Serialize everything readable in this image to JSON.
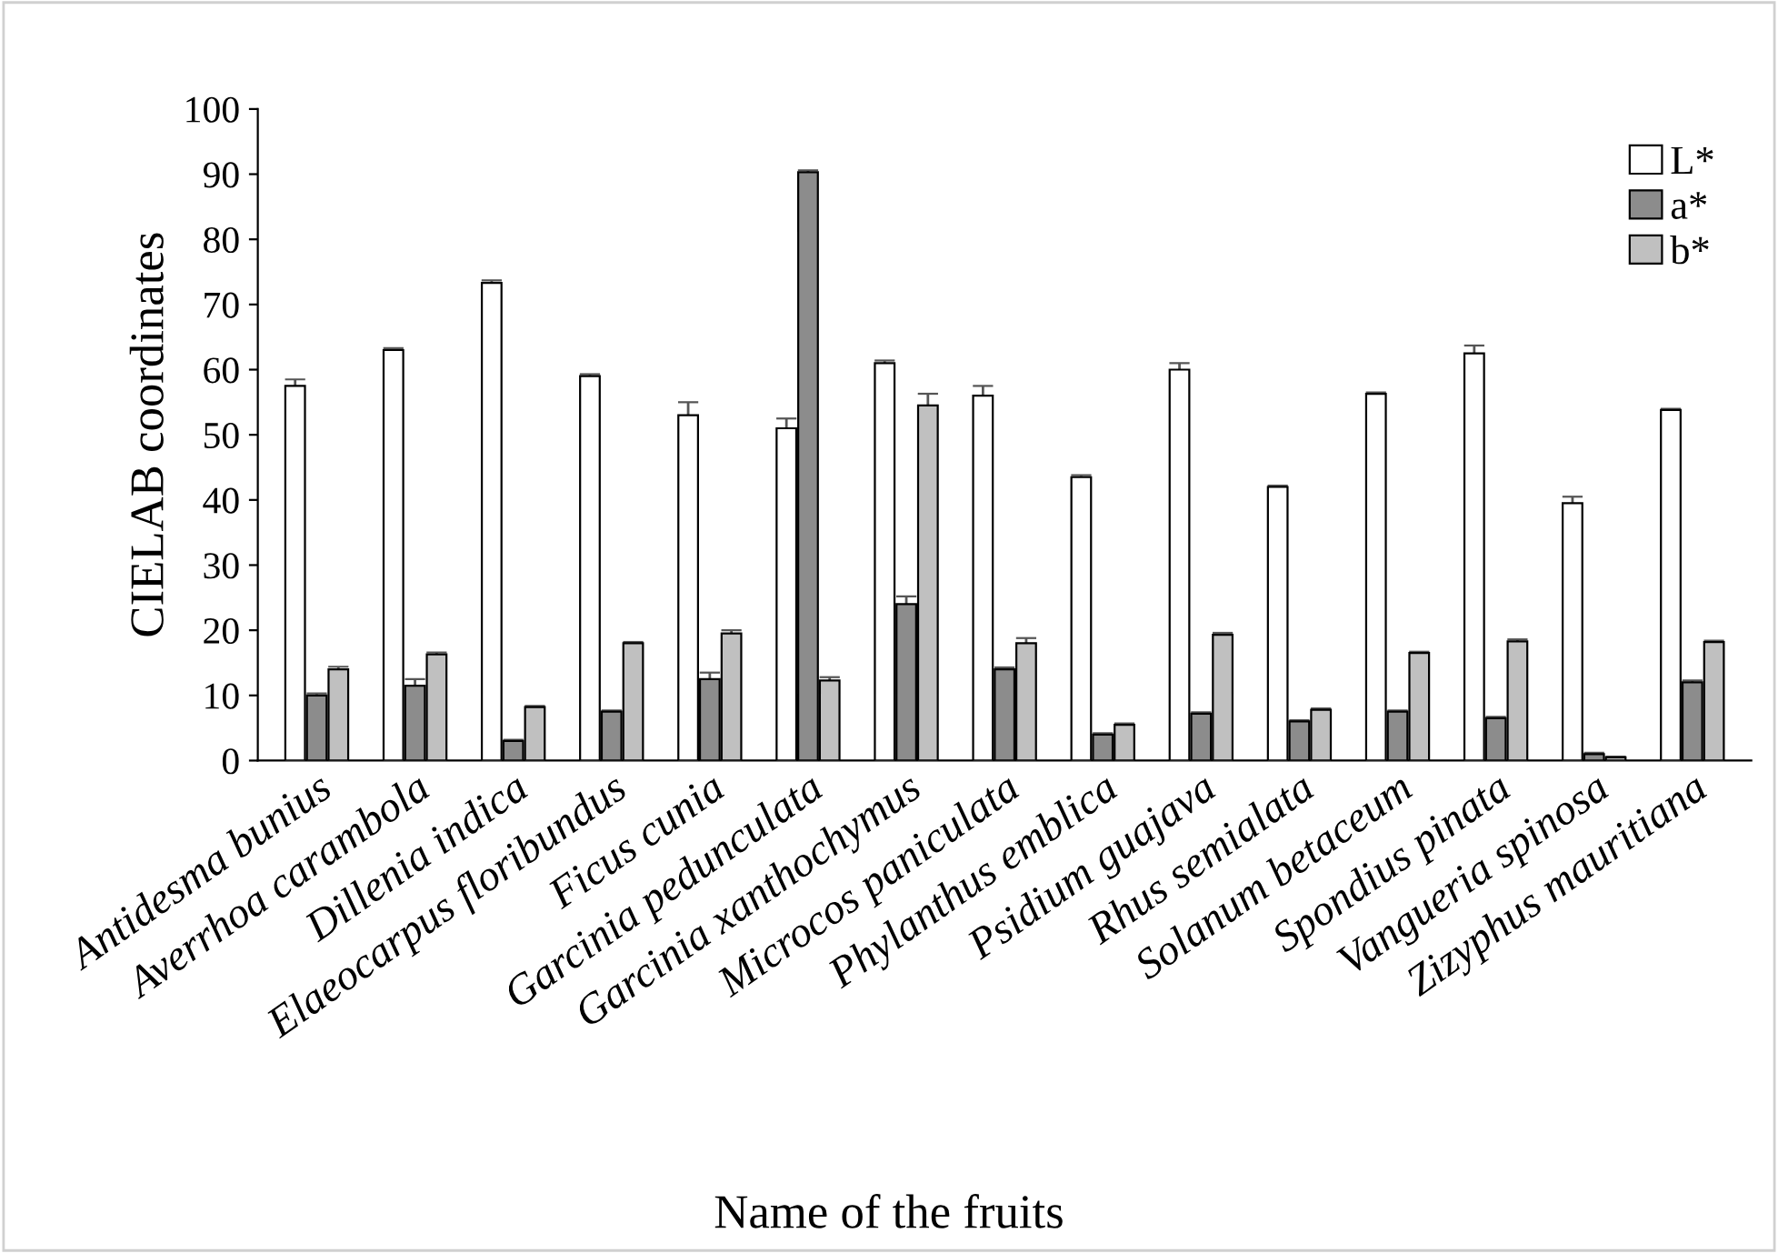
{
  "chart_data": {
    "type": "bar",
    "xlabel": "Name of the fruits",
    "ylabel": "CIELAB coordinates",
    "categories": [
      "Antidesma bunius",
      "Averrhoa carambola",
      "Dillenia indica",
      "Elaeocarpus floribundus",
      "Ficus cunia",
      "Garcinia pedunculata",
      "Garcinia xanthochymus",
      "Microcos paniculata",
      "Phylanthus emblica",
      "Psidium guajava",
      "Rhus semialata",
      "Solanum betaceum",
      "Spondius pinata",
      "Vangueria spinosa",
      "Zizyphus mauritiana"
    ],
    "series": [
      {
        "name": "L*",
        "color": "#ffffff",
        "values": [
          57.5,
          63,
          73.3,
          59,
          53,
          51,
          61,
          56,
          43.5,
          60,
          42,
          56.3,
          62.5,
          39.5,
          53.8
        ],
        "errors": [
          1,
          0.3,
          0.4,
          0.3,
          2,
          1.5,
          0.4,
          1.5,
          0.3,
          1,
          0.2,
          0.2,
          1.2,
          1,
          0.2
        ]
      },
      {
        "name": "a*",
        "color": "#8c8c8c",
        "values": [
          10,
          11.5,
          3,
          7.5,
          12.5,
          90.3,
          24,
          14,
          4,
          7.2,
          6,
          7.5,
          6.5,
          1,
          12
        ],
        "errors": [
          0.3,
          1,
          0.2,
          0.2,
          1,
          0.3,
          1.2,
          0.3,
          0.2,
          0.2,
          0.2,
          0.2,
          0.2,
          0.2,
          0.3
        ]
      },
      {
        "name": "b*",
        "color": "#c0c0c0",
        "values": [
          14,
          16.3,
          8.2,
          18,
          19.5,
          12.3,
          54.5,
          18,
          5.5,
          19.3,
          7.8,
          16.5,
          18.3,
          0.5,
          18.2
        ],
        "errors": [
          0.4,
          0.3,
          0.2,
          0.2,
          0.5,
          0.5,
          1.8,
          0.8,
          0.2,
          0.3,
          0.2,
          0.2,
          0.3,
          0.1,
          0.2
        ]
      }
    ],
    "ylim": [
      0,
      100
    ],
    "yticks": [
      0,
      10,
      20,
      30,
      40,
      50,
      60,
      70,
      80,
      90,
      100
    ],
    "grid": false,
    "legend": "top right"
  }
}
